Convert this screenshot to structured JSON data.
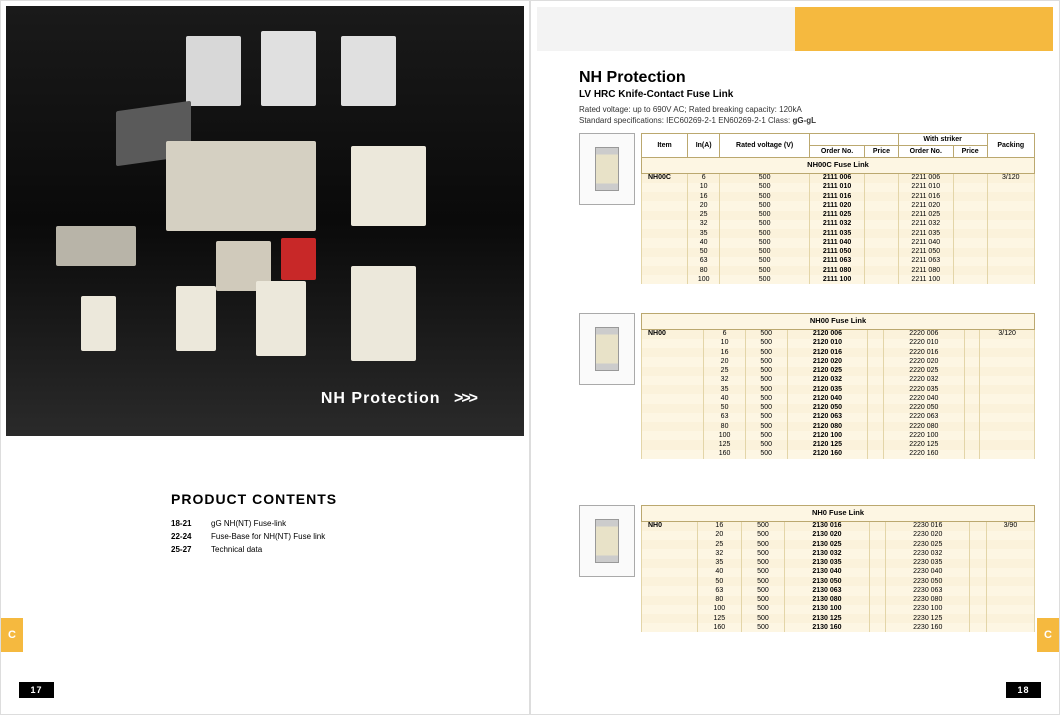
{
  "left": {
    "photo_label": "NH Protection",
    "photo_arrows": ">>>",
    "photo_bg": "#0f0f0f",
    "contents_heading": "PRODUCT CONTENTS",
    "contents": [
      {
        "pages": "18-21",
        "desc": "gG NH(NT) Fuse-link"
      },
      {
        "pages": "22-24",
        "desc": "Fuse-Base for NH(NT) Fuse link"
      },
      {
        "pages": "25-27",
        "desc": "Technical data"
      }
    ],
    "tab": "C",
    "pagenum": "17"
  },
  "right": {
    "header_orange": "#f5b93f",
    "title": "NH Protection",
    "subtitle": "LV HRC Knife-Contact   Fuse Link",
    "spec_line1": "Rated voltage: up to 690V AC;     Rated breaking capacity: 120kA",
    "spec_line2_a": "Standard specifications: IEC60269-2-1   EN60269-2-1   Class: ",
    "spec_line2_b": "gG-gL",
    "table_header": {
      "item": "Item",
      "in_a": "In(A)",
      "rated_v": "Rated voltage (V)",
      "order_no": "Order No.",
      "price": "Price",
      "with_striker": "With striker",
      "packing": "Packing"
    },
    "tables": [
      {
        "group": "NH00C Fuse Link",
        "model": "NH00C",
        "packing": "3/120",
        "rows": [
          {
            "a": 6,
            "v": 500,
            "o1": "2111 006",
            "o2": "2211 006"
          },
          {
            "a": 10,
            "v": 500,
            "o1": "2111 010",
            "o2": "2211 010"
          },
          {
            "a": 16,
            "v": 500,
            "o1": "2111 016",
            "o2": "2211 016"
          },
          {
            "a": 20,
            "v": 500,
            "o1": "2111 020",
            "o2": "2211 020"
          },
          {
            "a": 25,
            "v": 500,
            "o1": "2111 025",
            "o2": "2211 025"
          },
          {
            "a": 32,
            "v": 500,
            "o1": "2111 032",
            "o2": "2211 032"
          },
          {
            "a": 35,
            "v": 500,
            "o1": "2111 035",
            "o2": "2211 035"
          },
          {
            "a": 40,
            "v": 500,
            "o1": "2111 040",
            "o2": "2211 040"
          },
          {
            "a": 50,
            "v": 500,
            "o1": "2111 050",
            "o2": "2211 050"
          },
          {
            "a": 63,
            "v": 500,
            "o1": "2111 063",
            "o2": "2211 063"
          },
          {
            "a": 80,
            "v": 500,
            "o1": "2111 080",
            "o2": "2211 080"
          },
          {
            "a": 100,
            "v": 500,
            "o1": "2111 100",
            "o2": "2211 100"
          }
        ]
      },
      {
        "group": "NH00 Fuse Link",
        "model": "NH00",
        "packing": "3/120",
        "rows": [
          {
            "a": 6,
            "v": 500,
            "o1": "2120 006",
            "o2": "2220 006"
          },
          {
            "a": 10,
            "v": 500,
            "o1": "2120 010",
            "o2": "2220 010"
          },
          {
            "a": 16,
            "v": 500,
            "o1": "2120 016",
            "o2": "2220 016"
          },
          {
            "a": 20,
            "v": 500,
            "o1": "2120 020",
            "o2": "2220 020"
          },
          {
            "a": 25,
            "v": 500,
            "o1": "2120 025",
            "o2": "2220 025"
          },
          {
            "a": 32,
            "v": 500,
            "o1": "2120 032",
            "o2": "2220 032"
          },
          {
            "a": 35,
            "v": 500,
            "o1": "2120 035",
            "o2": "2220 035"
          },
          {
            "a": 40,
            "v": 500,
            "o1": "2120 040",
            "o2": "2220 040"
          },
          {
            "a": 50,
            "v": 500,
            "o1": "2120 050",
            "o2": "2220 050"
          },
          {
            "a": 63,
            "v": 500,
            "o1": "2120 063",
            "o2": "2220 063"
          },
          {
            "a": 80,
            "v": 500,
            "o1": "2120 080",
            "o2": "2220 080"
          },
          {
            "a": 100,
            "v": 500,
            "o1": "2120 100",
            "o2": "2220 100"
          },
          {
            "a": 125,
            "v": 500,
            "o1": "2120 125",
            "o2": "2220 125"
          },
          {
            "a": 160,
            "v": 500,
            "o1": "2120 160",
            "o2": "2220 160"
          }
        ]
      },
      {
        "group": "NH0 Fuse Link",
        "model": "NH0",
        "packing": "3/90",
        "rows": [
          {
            "a": 16,
            "v": 500,
            "o1": "2130 016",
            "o2": "2230 016"
          },
          {
            "a": 20,
            "v": 500,
            "o1": "2130 020",
            "o2": "2230 020"
          },
          {
            "a": 25,
            "v": 500,
            "o1": "2130 025",
            "o2": "2230 025"
          },
          {
            "a": 32,
            "v": 500,
            "o1": "2130 032",
            "o2": "2230 032"
          },
          {
            "a": 35,
            "v": 500,
            "o1": "2130 035",
            "o2": "2230 035"
          },
          {
            "a": 40,
            "v": 500,
            "o1": "2130 040",
            "o2": "2230 040"
          },
          {
            "a": 50,
            "v": 500,
            "o1": "2130 050",
            "o2": "2230 050"
          },
          {
            "a": 63,
            "v": 500,
            "o1": "2130 063",
            "o2": "2230 063"
          },
          {
            "a": 80,
            "v": 500,
            "o1": "2130 080",
            "o2": "2230 080"
          },
          {
            "a": 100,
            "v": 500,
            "o1": "2130 100",
            "o2": "2230 100"
          },
          {
            "a": 125,
            "v": 500,
            "o1": "2130 125",
            "o2": "2230 125"
          },
          {
            "a": 160,
            "v": 500,
            "o1": "2130 160",
            "o2": "2230 160"
          }
        ]
      }
    ],
    "tab": "C",
    "pagenum": "18"
  }
}
